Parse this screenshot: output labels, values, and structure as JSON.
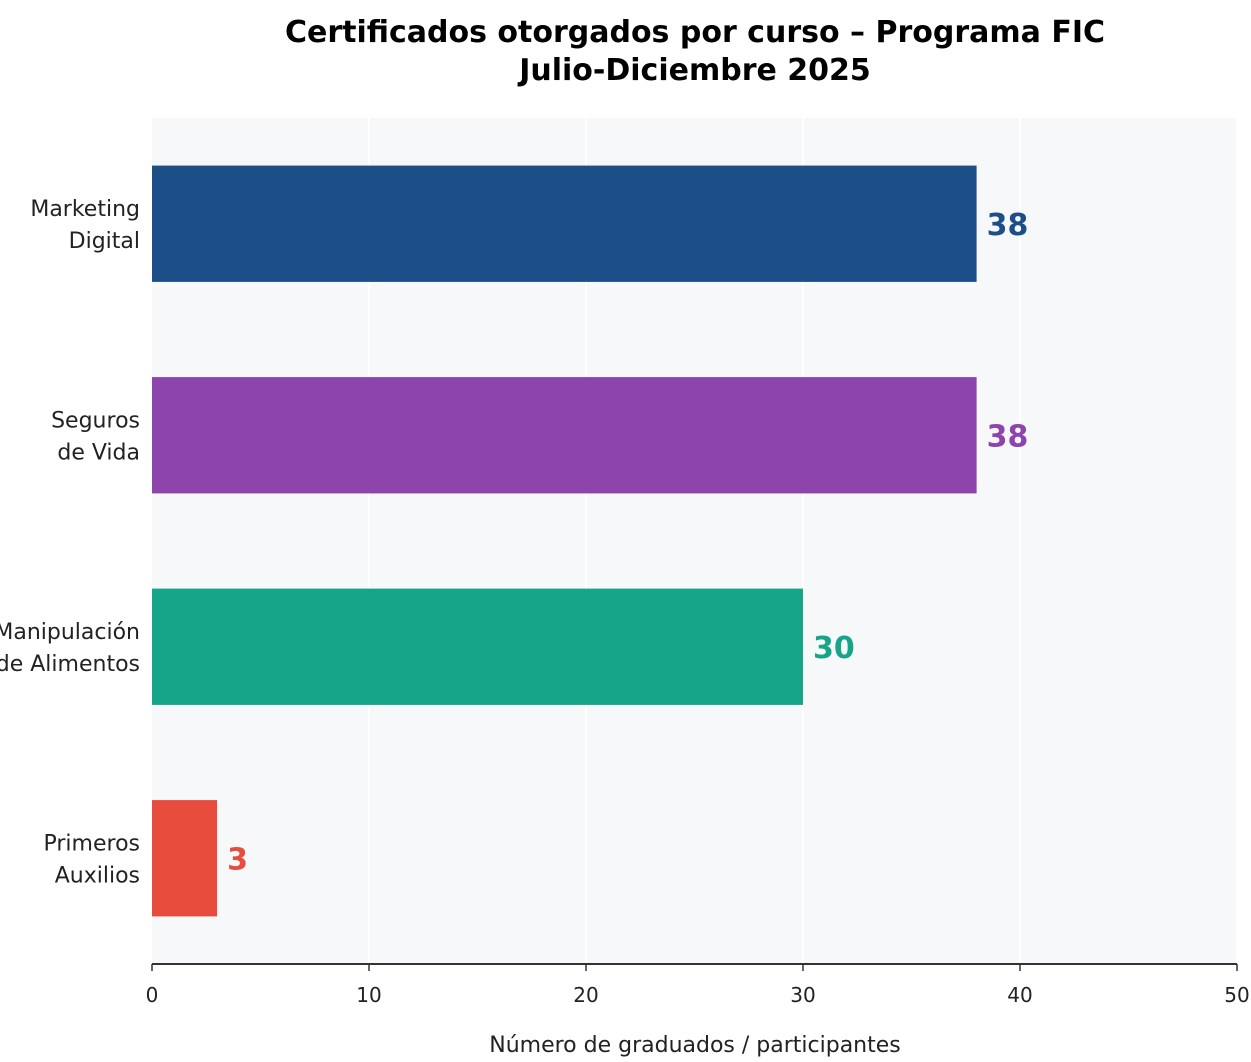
{
  "chart_data": {
    "type": "bar",
    "orientation": "horizontal",
    "title": "Certificados otorgados por curso – Programa FIC",
    "subtitle": "Julio-Diciembre 2025",
    "xlabel": "Número de graduados / participantes",
    "ylabel": "",
    "categories": [
      [
        "Marketing",
        "Digital"
      ],
      [
        "Seguros",
        "de Vida"
      ],
      [
        "Manipulación",
        "de Alimentos"
      ],
      [
        "Primeros",
        "Auxilios"
      ]
    ],
    "values": [
      38,
      38,
      30,
      3
    ],
    "colors": [
      "#1c4f87",
      "#8e44ad",
      "#17a589",
      "#e74c3c"
    ],
    "value_labels": [
      "38",
      "38",
      "30",
      "3"
    ],
    "xlim": [
      0,
      50
    ],
    "xticks": [
      0,
      10,
      20,
      30,
      40,
      50
    ],
    "grid": "vertical",
    "plot_background": "#f7f8fa",
    "legend": "none"
  }
}
